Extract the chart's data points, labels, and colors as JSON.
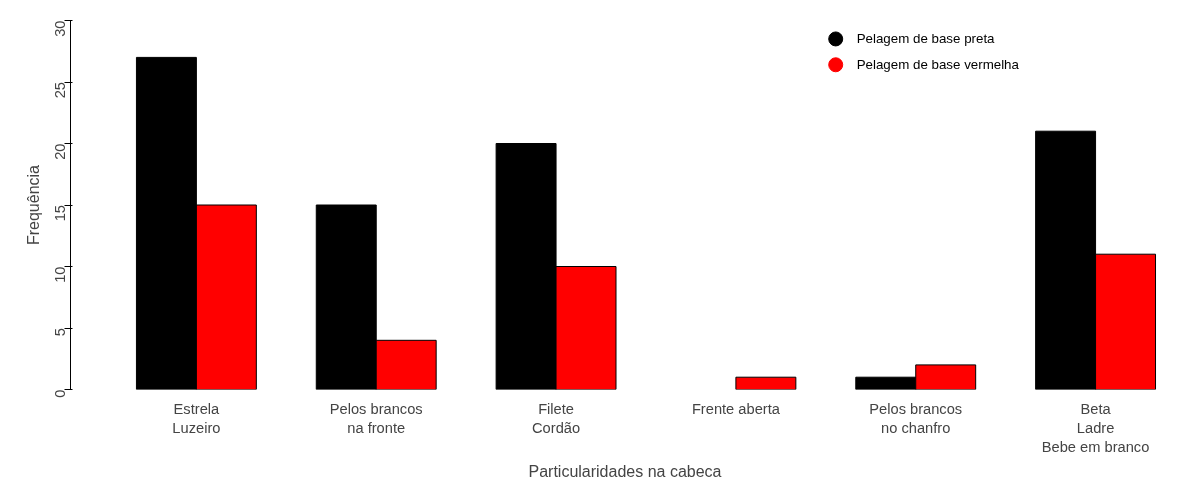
{
  "chart_data": {
    "type": "bar",
    "xlabel": "Particularidades na cabeca",
    "ylabel": "Frequência",
    "categories": [
      "Estrela\nLuzeiro",
      "Pelos brancos\nna fronte",
      "Filete\nCordão",
      "Frente aberta",
      "Pelos brancos\nno chanfro",
      "Beta\nLadre\nBebe em branco"
    ],
    "series": [
      {
        "name": "Pelagem de base preta",
        "color": "#000000",
        "values": [
          27,
          15,
          20,
          0,
          1,
          21
        ]
      },
      {
        "name": "Pelagem de base vermelha",
        "color": "#ff0000",
        "values": [
          15,
          4,
          10,
          1,
          2,
          11
        ]
      }
    ],
    "ylim": [
      0,
      30
    ],
    "yticks": [
      0,
      5,
      10,
      15,
      20,
      25,
      30
    ],
    "grid": false,
    "legend": "top right",
    "marker": "circle"
  }
}
